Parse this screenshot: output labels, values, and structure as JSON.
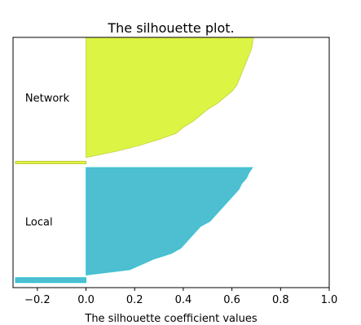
{
  "chart_data": {
    "type": "area",
    "title": "The silhouette plot.",
    "xlabel": "The silhouette coefficient values",
    "ylabel": "",
    "xlim": [
      -0.3,
      1.0
    ],
    "xticks": [
      -0.2,
      0.0,
      0.2,
      0.4,
      0.6,
      0.8,
      1.0
    ],
    "xtick_labels": [
      "−0.2",
      "0.0",
      "0.2",
      "0.4",
      "0.6",
      "0.8",
      "1.0"
    ],
    "yticks_visible": false,
    "grid": false,
    "legend": "none",
    "sample_count_axis": [
      0,
      100
    ],
    "clusters": [
      {
        "name": "Local",
        "color": "#4dbfd1",
        "edge_color": "#17becf",
        "band": [
          5,
          48
        ],
        "outlier_bar": {
          "band": [
            2,
            4
          ],
          "range": [
            -0.29,
            0.0
          ]
        },
        "profile": [
          [
            0.0,
            0.0
          ],
          [
            0.05,
            0.18
          ],
          [
            0.1,
            0.23
          ],
          [
            0.15,
            0.28
          ],
          [
            0.2,
            0.35
          ],
          [
            0.25,
            0.39
          ],
          [
            0.3,
            0.41
          ],
          [
            0.35,
            0.43
          ],
          [
            0.4,
            0.45
          ],
          [
            0.45,
            0.47
          ],
          [
            0.5,
            0.51
          ],
          [
            0.55,
            0.53
          ],
          [
            0.6,
            0.55
          ],
          [
            0.65,
            0.57
          ],
          [
            0.7,
            0.59
          ],
          [
            0.75,
            0.61
          ],
          [
            0.8,
            0.63
          ],
          [
            0.85,
            0.64
          ],
          [
            0.9,
            0.66
          ],
          [
            0.95,
            0.67
          ],
          [
            1.0,
            0.685
          ]
        ]
      },
      {
        "name": "Network",
        "color": "#dcf545",
        "edge_color": "#bcbd22",
        "band": [
          52,
          100
        ],
        "outlier_bar": {
          "band": [
            49.5,
            50.5
          ],
          "range": [
            -0.29,
            0.0
          ]
        },
        "profile": [
          [
            0.0,
            0.0
          ],
          [
            0.05,
            0.12
          ],
          [
            0.1,
            0.22
          ],
          [
            0.15,
            0.3
          ],
          [
            0.2,
            0.37
          ],
          [
            0.25,
            0.4
          ],
          [
            0.3,
            0.44
          ],
          [
            0.35,
            0.47
          ],
          [
            0.4,
            0.5
          ],
          [
            0.45,
            0.54
          ],
          [
            0.5,
            0.57
          ],
          [
            0.55,
            0.6
          ],
          [
            0.6,
            0.62
          ],
          [
            0.65,
            0.63
          ],
          [
            0.7,
            0.64
          ],
          [
            0.75,
            0.65
          ],
          [
            0.8,
            0.66
          ],
          [
            0.85,
            0.67
          ],
          [
            0.9,
            0.68
          ],
          [
            0.95,
            0.685
          ],
          [
            1.0,
            0.688
          ]
        ]
      }
    ]
  }
}
